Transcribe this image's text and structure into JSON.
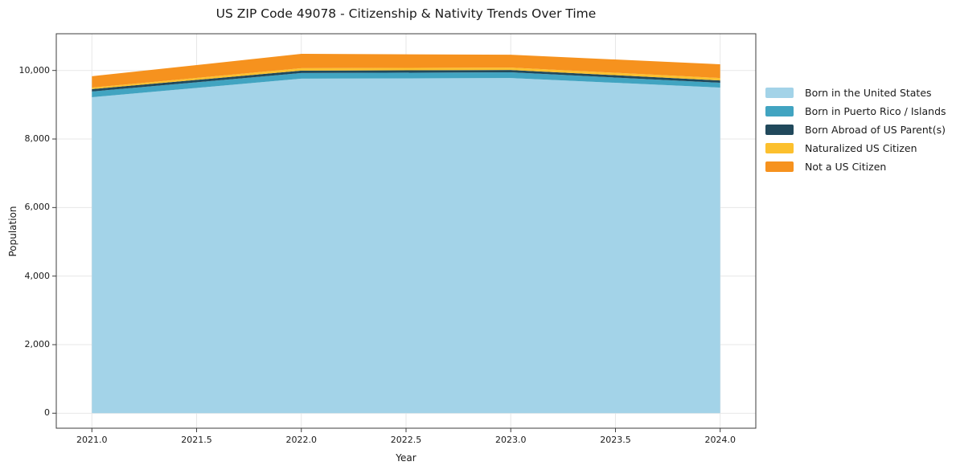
{
  "title": "US ZIP Code 49078 - Citizenship & Nativity Trends Over Time",
  "chart_data": {
    "type": "area",
    "stacked": true,
    "title": "US ZIP Code 49078 - Citizenship & Nativity Trends Over Time",
    "xlabel": "Year",
    "ylabel": "Population",
    "x": [
      2021,
      2022,
      2023,
      2024
    ],
    "series": [
      {
        "name": "Born in the United States",
        "color": "#a3d3e8",
        "values": [
          9220,
          9760,
          9780,
          9500
        ]
      },
      {
        "name": "Born in Puerto Rico / Islands",
        "color": "#41a4c1",
        "values": [
          165,
          165,
          165,
          140
        ]
      },
      {
        "name": "Born Abroad of US Parent(s)",
        "color": "#21495c",
        "values": [
          70,
          70,
          70,
          70
        ]
      },
      {
        "name": "Naturalized US Citizen",
        "color": "#fcc02e",
        "values": [
          45,
          70,
          70,
          70
        ]
      },
      {
        "name": "Not a US Citizen",
        "color": "#f6921e",
        "values": [
          330,
          420,
          375,
          400
        ]
      }
    ],
    "stack_totals": [
      9830,
      10485,
      10460,
      10180
    ],
    "x_ticks": [
      2021,
      2021.5,
      2022,
      2022.5,
      2023,
      2023.5,
      2024
    ],
    "x_tick_labels": [
      "2021.0",
      "2021.5",
      "2022.0",
      "2022.5",
      "2023.0",
      "2023.5",
      "2024.0"
    ],
    "y_ticks": [
      0,
      2000,
      4000,
      6000,
      8000,
      10000
    ],
    "y_tick_labels": [
      "0",
      "2,000",
      "4,000",
      "6,000",
      "8,000",
      "10,000"
    ],
    "xlim": [
      2020.83,
      2024.17
    ],
    "ylim": [
      -438,
      11071
    ],
    "grid": true,
    "legend_position": "right-outside",
    "grid_color": "#e7e7e7",
    "spine_color": "#3c3c3c",
    "text_color": "#1a1a1a",
    "background_color": "#ffffff"
  }
}
